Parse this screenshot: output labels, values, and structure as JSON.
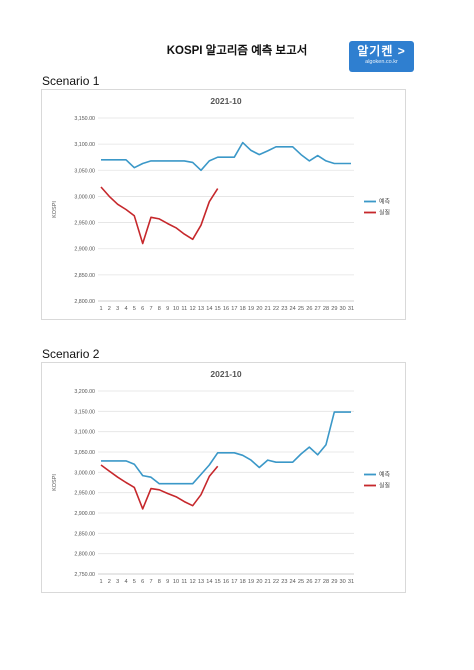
{
  "document": {
    "title": "KOSPI 알고리즘 예측 보고서",
    "logo_main": "알기켄 >",
    "logo_sub": "algoken.co.kr"
  },
  "sections": [
    {
      "label": "Scenario 1"
    },
    {
      "label": "Scenario 2"
    }
  ],
  "colors": {
    "prediction": "#3b98c8",
    "actual": "#c6282c",
    "grid": "#e3e3e3",
    "axis_text": "#555555"
  },
  "chart_data": [
    {
      "type": "line",
      "title": "2021-10",
      "ylabel": "KOSPI",
      "xlabel": "",
      "ylim": [
        2800,
        3150
      ],
      "yticks": [
        "2,800.00",
        "2,850.00",
        "2,900.00",
        "2,950.00",
        "3,000.00",
        "3,050.00",
        "3,100.00",
        "3,150.00"
      ],
      "ytick_values": [
        2800,
        2850,
        2900,
        2950,
        3000,
        3050,
        3100,
        3150
      ],
      "x": [
        1,
        2,
        3,
        4,
        5,
        6,
        7,
        8,
        9,
        10,
        11,
        12,
        13,
        14,
        15,
        16,
        17,
        18,
        19,
        20,
        21,
        22,
        23,
        24,
        25,
        26,
        27,
        28,
        29,
        30,
        31
      ],
      "grid": true,
      "legend_position": "right",
      "series": [
        {
          "name": "예측",
          "color_key": "prediction",
          "x": [
            1,
            2,
            3,
            4,
            5,
            6,
            7,
            8,
            9,
            10,
            11,
            12,
            13,
            14,
            15,
            16,
            17,
            18,
            19,
            20,
            21,
            22,
            23,
            24,
            25,
            26,
            27,
            28,
            29,
            30,
            31
          ],
          "values": [
            3070,
            3070,
            3070,
            3070,
            3055,
            3063,
            3068,
            3068,
            3068,
            3068,
            3068,
            3065,
            3050,
            3068,
            3075,
            3075,
            3075,
            3103,
            3088,
            3080,
            3087,
            3095,
            3095,
            3095,
            3080,
            3068,
            3078,
            3068,
            3063,
            3063,
            3063
          ]
        },
        {
          "name": "실질",
          "color_key": "actual",
          "x": [
            1,
            2,
            3,
            4,
            5,
            6,
            7,
            8,
            9,
            10,
            11,
            12,
            13,
            14,
            15
          ],
          "values": [
            3018,
            3000,
            2985,
            2975,
            2963,
            2910,
            2960,
            2957,
            2948,
            2940,
            2928,
            2918,
            2945,
            2990,
            3015
          ]
        }
      ]
    },
    {
      "type": "line",
      "title": "2021-10",
      "ylabel": "KOSPI",
      "xlabel": "",
      "ylim": [
        2750,
        3200
      ],
      "yticks": [
        "2,750.00",
        "2,800.00",
        "2,850.00",
        "2,900.00",
        "2,950.00",
        "3,000.00",
        "3,050.00",
        "3,100.00",
        "3,150.00",
        "3,200.00"
      ],
      "ytick_values": [
        2750,
        2800,
        2850,
        2900,
        2950,
        3000,
        3050,
        3100,
        3150,
        3200
      ],
      "x": [
        1,
        2,
        3,
        4,
        5,
        6,
        7,
        8,
        9,
        10,
        11,
        12,
        13,
        14,
        15,
        16,
        17,
        18,
        19,
        20,
        21,
        22,
        23,
        24,
        25,
        26,
        27,
        28,
        29,
        30,
        31
      ],
      "grid": true,
      "legend_position": "right",
      "series": [
        {
          "name": "예측",
          "color_key": "prediction",
          "x": [
            1,
            2,
            3,
            4,
            5,
            6,
            7,
            8,
            9,
            10,
            11,
            12,
            13,
            14,
            15,
            16,
            17,
            18,
            19,
            20,
            21,
            22,
            23,
            24,
            25,
            26,
            27,
            28,
            29,
            30,
            31
          ],
          "values": [
            3028,
            3028,
            3028,
            3028,
            3020,
            2992,
            2988,
            2972,
            2972,
            2972,
            2972,
            2972,
            2995,
            3018,
            3048,
            3048,
            3048,
            3042,
            3030,
            3012,
            3030,
            3025,
            3025,
            3025,
            3045,
            3062,
            3043,
            3068,
            3148,
            3148,
            3148
          ]
        },
        {
          "name": "실질",
          "color_key": "actual",
          "x": [
            1,
            2,
            3,
            4,
            5,
            6,
            7,
            8,
            9,
            10,
            11,
            12,
            13,
            14,
            15
          ],
          "values": [
            3018,
            3003,
            2988,
            2975,
            2963,
            2910,
            2960,
            2957,
            2948,
            2940,
            2928,
            2918,
            2945,
            2990,
            3015
          ]
        }
      ]
    }
  ]
}
